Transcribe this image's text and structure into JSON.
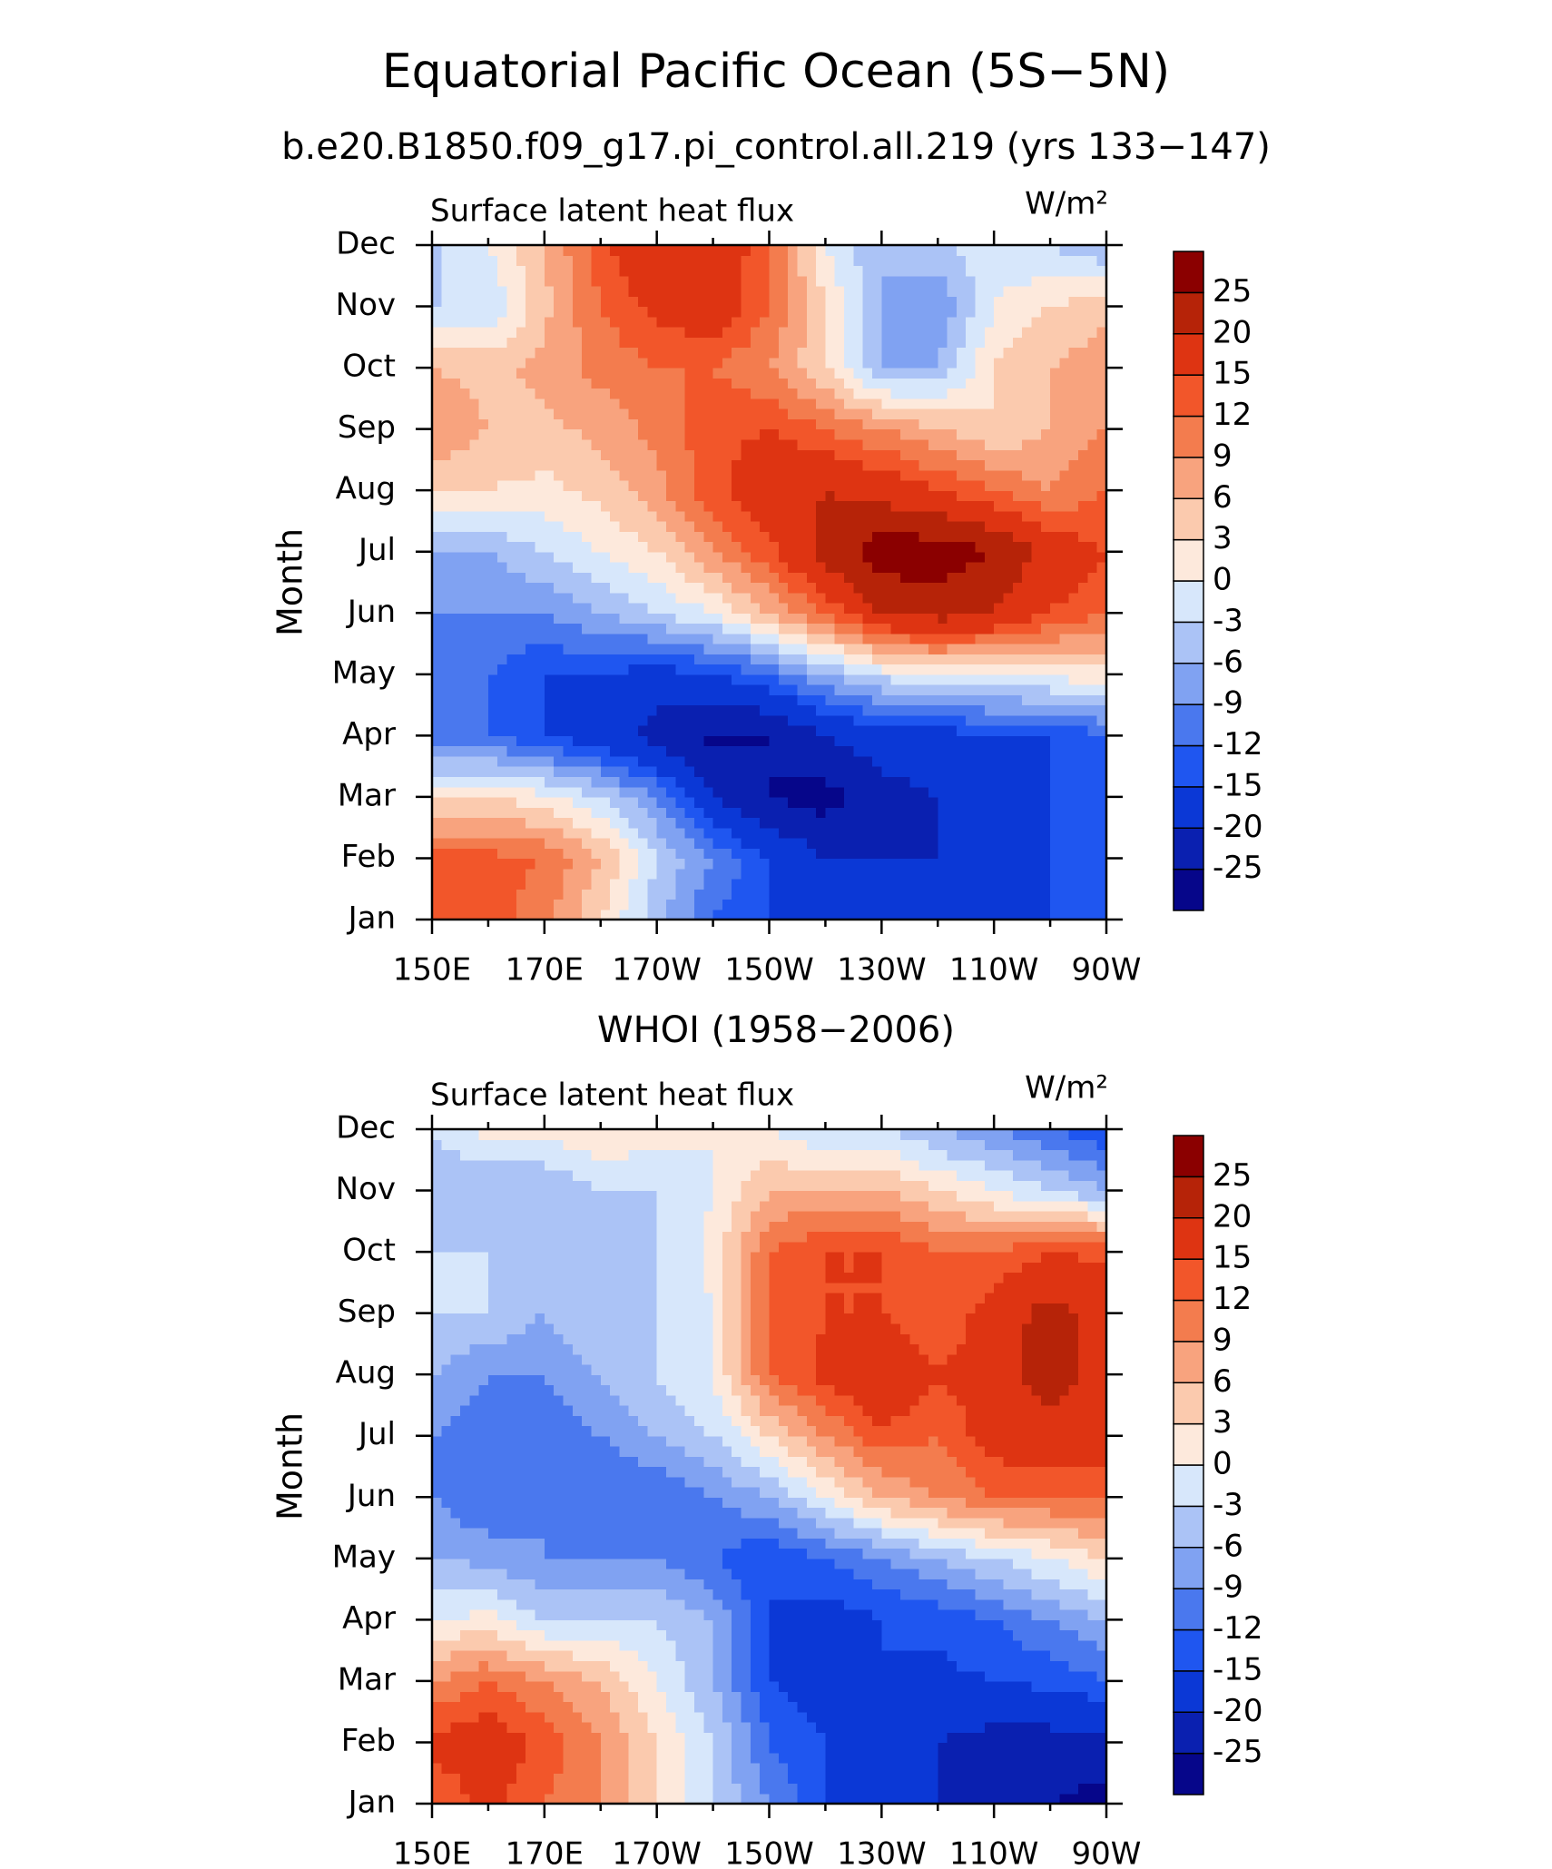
{
  "title": "Equatorial Pacific Ocean (5S−5N)",
  "chart_data": [
    {
      "type": "contour",
      "title": "b.e20.B1850.f09_g17.pi_control.all.219 (yrs 133−147)",
      "left_label": "Surface latent heat flux",
      "right_label": "W/m²",
      "ylabel": "Month",
      "x": [
        150,
        160,
        170,
        180,
        190,
        200,
        210,
        220,
        230,
        240,
        250,
        260,
        270
      ],
      "categories": [
        "Jan",
        "Feb",
        "Mar",
        "Apr",
        "May",
        "Jun",
        "Jul",
        "Aug",
        "Sep",
        "Oct",
        "Nov",
        "Dec"
      ],
      "xlim": [
        150,
        270
      ],
      "xticks": [
        {
          "value": 150,
          "label": "150E"
        },
        {
          "value": 170,
          "label": "170E"
        },
        {
          "value": 190,
          "label": "170W"
        },
        {
          "value": 210,
          "label": "150W"
        },
        {
          "value": 230,
          "label": "130W"
        },
        {
          "value": 250,
          "label": "110W"
        },
        {
          "value": 270,
          "label": "90W"
        }
      ],
      "xminorticks": [
        160,
        180,
        200,
        220,
        240,
        260
      ],
      "values": [
        [
          14,
          14,
          10,
          3,
          -5,
          -12,
          -15,
          -15,
          -15,
          -15,
          -15,
          -15,
          -15
        ],
        [
          13,
          13,
          12,
          6,
          -3,
          -9,
          -15,
          -20,
          -20,
          -20,
          -17,
          -15,
          -15
        ],
        [
          3,
          3,
          1,
          -3,
          -9,
          -20,
          -25,
          -27,
          -22,
          -20,
          -16,
          -15,
          -15
        ],
        [
          -12,
          -12,
          -15,
          -18,
          -22,
          -26,
          -25,
          -20,
          -17,
          -17,
          -15,
          -15,
          -12
        ],
        [
          -12,
          -12,
          -15,
          -15,
          -17,
          -15,
          -12,
          -6,
          -2,
          0,
          0,
          1,
          2
        ],
        [
          -9,
          -9,
          -9,
          -6,
          -3,
          0,
          6,
          12,
          20,
          22,
          20,
          15,
          12
        ],
        [
          -6,
          -6,
          -3,
          0,
          3,
          9,
          14,
          22,
          28,
          28,
          25,
          18,
          15
        ],
        [
          3,
          3,
          2,
          4,
          8,
          14,
          18,
          20,
          18,
          15,
          12,
          9,
          12
        ],
        [
          9,
          6,
          5,
          7,
          10,
          14,
          15,
          12,
          9,
          6,
          3,
          6,
          9
        ],
        [
          6,
          5,
          7,
          10,
          12,
          12,
          9,
          3,
          -6,
          -6,
          3,
          6,
          8
        ],
        [
          -3,
          -3,
          5,
          12,
          16,
          18,
          12,
          3,
          -6,
          -9,
          0,
          3,
          5
        ],
        [
          -4,
          0,
          6,
          14,
          20,
          18,
          13,
          0,
          -6,
          -3,
          -2,
          -3,
          -6
        ]
      ],
      "levels": [
        -25,
        -20,
        -15,
        -12,
        -9,
        -6,
        -3,
        0,
        3,
        6,
        9,
        12,
        15,
        20,
        25
      ],
      "colors": [
        "#06068a",
        "#0a20b0",
        "#0b38d6",
        "#1f56f0",
        "#4a78ee",
        "#80a2f2",
        "#abc3f6",
        "#d7e7fb",
        "#fde9dc",
        "#fbcaae",
        "#f8a37e",
        "#f37c4e",
        "#f2562a",
        "#de3412",
        "#b62308",
        "#8b0000"
      ]
    },
    {
      "type": "contour",
      "title": "WHOI (1958−2006)",
      "left_label": "Surface latent heat flux",
      "right_label": "W/m²",
      "ylabel": "Month",
      "x": [
        150,
        160,
        170,
        180,
        190,
        200,
        210,
        220,
        230,
        240,
        250,
        260,
        270
      ],
      "categories": [
        "Jan",
        "Feb",
        "Mar",
        "Apr",
        "May",
        "Jun",
        "Jul",
        "Aug",
        "Sep",
        "Oct",
        "Nov",
        "Dec"
      ],
      "xlim": [
        150,
        270
      ],
      "xticks": [
        {
          "value": 150,
          "label": "150E"
        },
        {
          "value": 170,
          "label": "170E"
        },
        {
          "value": 190,
          "label": "170W"
        },
        {
          "value": 210,
          "label": "150W"
        },
        {
          "value": 230,
          "label": "130W"
        },
        {
          "value": 250,
          "label": "110W"
        },
        {
          "value": 270,
          "label": "90W"
        }
      ],
      "xminorticks": [
        160,
        180,
        200,
        220,
        240,
        260
      ],
      "values": [
        [
          12,
          16,
          12,
          9,
          3,
          -3,
          -9,
          -15,
          -18,
          -20,
          -22,
          -25,
          -27
        ],
        [
          16,
          18,
          14,
          9,
          3,
          -3,
          -12,
          -15,
          -18,
          -20,
          -22,
          -22,
          -22
        ],
        [
          9,
          12,
          9,
          6,
          0,
          -6,
          -15,
          -17,
          -15,
          -16,
          -15,
          -14,
          -12
        ],
        [
          0,
          1,
          -3,
          -3,
          -3,
          -6,
          -15,
          -17,
          -15,
          -14,
          -12,
          -9,
          -6
        ],
        [
          -6,
          -7,
          -9,
          -9,
          -9,
          -12,
          -15,
          -12,
          -9,
          -6,
          -3,
          0,
          3
        ],
        [
          -9,
          -12,
          -9,
          -12,
          -12,
          -9,
          -6,
          0,
          6,
          9,
          12,
          12,
          12
        ],
        [
          -9,
          -12,
          -12,
          -9,
          -6,
          -3,
          3,
          9,
          14,
          12,
          17,
          18,
          18
        ],
        [
          -6,
          -9,
          -9,
          -6,
          -3,
          0,
          12,
          16,
          20,
          15,
          18,
          22,
          18
        ],
        [
          -3,
          -3,
          -6,
          -3,
          -3,
          0,
          12,
          15,
          15,
          12,
          17,
          22,
          18
        ],
        [
          -3,
          -3,
          -6,
          -6,
          -3,
          1,
          12,
          15,
          15,
          12,
          12,
          15,
          14
        ],
        [
          -6,
          -6,
          -6,
          -3,
          -3,
          0,
          6,
          6,
          6,
          3,
          0,
          -3,
          -6
        ],
        [
          -3,
          1,
          1,
          3,
          1,
          0,
          0,
          -3,
          -3,
          -6,
          -9,
          -12,
          -15
        ]
      ],
      "levels": [
        -25,
        -20,
        -15,
        -12,
        -9,
        -6,
        -3,
        0,
        3,
        6,
        9,
        12,
        15,
        20,
        25
      ],
      "colors": [
        "#06068a",
        "#0a20b0",
        "#0b38d6",
        "#1f56f0",
        "#4a78ee",
        "#80a2f2",
        "#abc3f6",
        "#d7e7fb",
        "#fde9dc",
        "#fbcaae",
        "#f8a37e",
        "#f37c4e",
        "#f2562a",
        "#de3412",
        "#b62308",
        "#8b0000"
      ]
    }
  ]
}
